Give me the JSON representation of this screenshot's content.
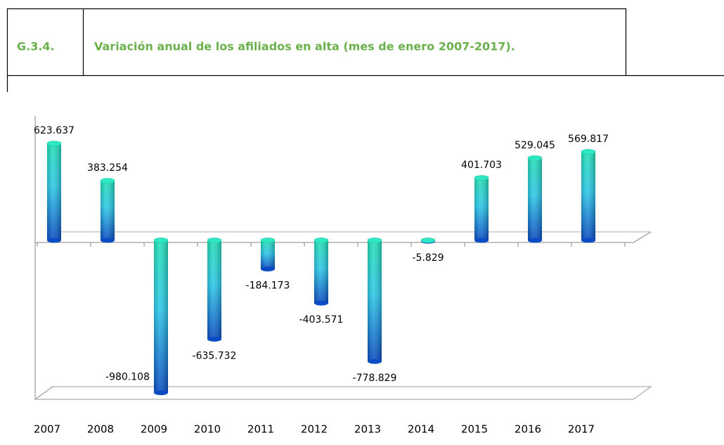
{
  "chart_data": {
    "type": "bar",
    "figure_number": "G.3.4.",
    "title": "Variación anual de los afiliados en alta (mes de enero 2007-2017).",
    "categories": [
      "2007",
      "2008",
      "2009",
      "2010",
      "2011",
      "2012",
      "2013",
      "2014",
      "2015",
      "2016",
      "2017"
    ],
    "values": [
      623637,
      383254,
      -980108,
      -635732,
      -184173,
      -403571,
      -778829,
      -5829,
      401703,
      529045,
      569817
    ],
    "value_labels": [
      "623.637",
      "383.254",
      "-980.108",
      "-635.732",
      "-184.173",
      "-403.571",
      "-778.829",
      "-5.829",
      "401.703",
      "529.045",
      "569.817"
    ],
    "ylim": [
      -1000000,
      800000
    ],
    "color": "#1e90e0"
  }
}
